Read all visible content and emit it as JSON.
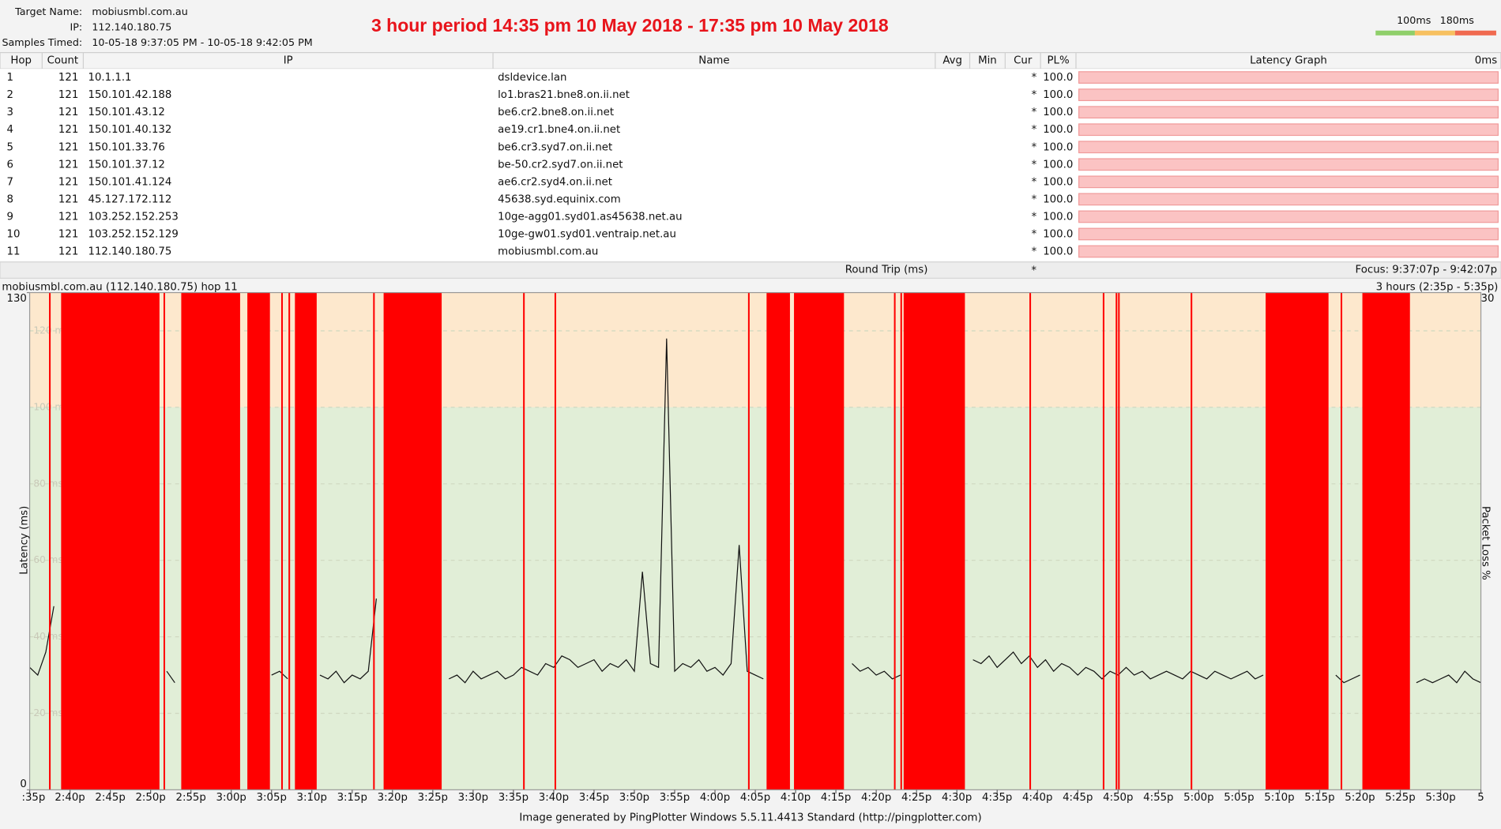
{
  "header": {
    "target_label": "Target Name:",
    "target": "mobiusmbl.com.au",
    "ip_label": "IP:",
    "ip": "112.140.180.75",
    "samples_label": "Samples Timed:",
    "samples": "10-05-18 9:37:05 PM - 10-05-18 9:42:05 PM",
    "title": "3 hour period 14:35 pm 10 May 2018 - 17:35 pm 10 May 2018"
  },
  "legend": {
    "ticks": [
      {
        "value": 100,
        "label": "100ms"
      },
      {
        "value": 180,
        "label": "180ms"
      }
    ]
  },
  "table": {
    "columns": [
      "Hop",
      "Count",
      "IP",
      "Name",
      "Avg",
      "Min",
      "Cur",
      "PL%",
      "Latency Graph",
      "0ms"
    ],
    "rows": [
      [
        1,
        121,
        "10.1.1.1",
        "dsldevice.lan",
        "*",
        "100.0"
      ],
      [
        2,
        121,
        "150.101.42.188",
        "lo1.bras21.bne8.on.ii.net",
        "*",
        "100.0"
      ],
      [
        3,
        121,
        "150.101.43.12",
        "be6.cr2.bne8.on.ii.net",
        "*",
        "100.0"
      ],
      [
        4,
        121,
        "150.101.40.132",
        "ae19.cr1.bne4.on.ii.net",
        "*",
        "100.0"
      ],
      [
        5,
        121,
        "150.101.33.76",
        "be6.cr3.syd7.on.ii.net",
        "*",
        "100.0"
      ],
      [
        6,
        121,
        "150.101.37.12",
        "be-50.cr2.syd7.on.ii.net",
        "*",
        "100.0"
      ],
      [
        7,
        121,
        "150.101.41.124",
        "ae6.cr2.syd4.on.ii.net",
        "*",
        "100.0"
      ],
      [
        8,
        121,
        "45.127.172.112",
        "45638.syd.equinix.com",
        "*",
        "100.0"
      ],
      [
        9,
        121,
        "103.252.152.253",
        "10ge-agg01.syd01.as45638.net.au",
        "*",
        "100.0"
      ],
      [
        10,
        121,
        "103.252.152.129",
        "10ge-gw01.syd01.ventraip.net.au",
        "*",
        "100.0"
      ],
      [
        11,
        121,
        "112.140.180.75",
        "mobiusmbl.com.au",
        "*",
        "100.0"
      ]
    ],
    "round_trip": "Round Trip (ms)",
    "round_trip_cur": "*",
    "focus": "Focus: 9:37:07p - 9:42:07p"
  },
  "chart_data": {
    "type": "line",
    "caption": "mobiusmbl.com.au (112.140.180.75) hop 11",
    "range": "3 hours (2:35p - 5:35p)",
    "y_label": "Latency (ms)",
    "y2_label": "Packet Loss %",
    "xlim": [
      875,
      1055
    ],
    "ylim": [
      0,
      130
    ],
    "y2lim": [
      0,
      30
    ],
    "y2ticks": [
      30
    ],
    "yticks": [
      0,
      {
        "value": 20,
        "label": "20 ms"
      },
      {
        "value": 40,
        "label": "40 ms"
      },
      {
        "value": 60,
        "label": "60 ms"
      },
      {
        "value": 80,
        "label": "80 ms"
      },
      {
        "value": 100,
        "label": "100 ms"
      },
      {
        "value": 120,
        "label": "120 ms"
      },
      130
    ],
    "xticks": [
      {
        "value": 875,
        "label": ":35p"
      },
      {
        "value": 880,
        "label": "2:40p"
      },
      {
        "value": 885,
        "label": "2:45p"
      },
      {
        "value": 890,
        "label": "2:50p"
      },
      {
        "value": 895,
        "label": "2:55p"
      },
      {
        "value": 900,
        "label": "3:00p"
      },
      {
        "value": 905,
        "label": "3:05p"
      },
      {
        "value": 910,
        "label": "3:10p"
      },
      {
        "value": 915,
        "label": "3:15p"
      },
      {
        "value": 920,
        "label": "3:20p"
      },
      {
        "value": 925,
        "label": "3:25p"
      },
      {
        "value": 930,
        "label": "3:30p"
      },
      {
        "value": 935,
        "label": "3:35p"
      },
      {
        "value": 940,
        "label": "3:40p"
      },
      {
        "value": 945,
        "label": "3:45p"
      },
      {
        "value": 950,
        "label": "3:50p"
      },
      {
        "value": 955,
        "label": "3:55p"
      },
      {
        "value": 960,
        "label": "4:00p"
      },
      {
        "value": 965,
        "label": "4:05p"
      },
      {
        "value": 970,
        "label": "4:10p"
      },
      {
        "value": 975,
        "label": "4:15p"
      },
      {
        "value": 980,
        "label": "4:20p"
      },
      {
        "value": 985,
        "label": "4:25p"
      },
      {
        "value": 990,
        "label": "4:30p"
      },
      {
        "value": 995,
        "label": "4:35p"
      },
      {
        "value": 1000,
        "label": "4:40p"
      },
      {
        "value": 1005,
        "label": "4:45p"
      },
      {
        "value": 1010,
        "label": "4:50p"
      },
      {
        "value": 1015,
        "label": "4:55p"
      },
      {
        "value": 1020,
        "label": "5:00p"
      },
      {
        "value": 1025,
        "label": "5:05p"
      },
      {
        "value": 1030,
        "label": "5:10p"
      },
      {
        "value": 1035,
        "label": "5:15p"
      },
      {
        "value": 1040,
        "label": "5:20p"
      },
      {
        "value": 1045,
        "label": "5:25p"
      },
      {
        "value": 1050,
        "label": "5:30p"
      },
      {
        "value": 1055,
        "label": "5"
      }
    ],
    "loss_color": "#ff0000",
    "line_color": "#111111",
    "loss_periods": [
      {
        "start": 877.4,
        "end": 877.6
      },
      {
        "start": 878.9,
        "end": 891.1
      },
      {
        "start": 891.6,
        "end": 891.8
      },
      {
        "start": 893.8,
        "end": 901.1
      },
      {
        "start": 902.0,
        "end": 904.8
      },
      {
        "start": 906.2,
        "end": 906.4
      },
      {
        "start": 907.1,
        "end": 907.3
      },
      {
        "start": 907.9,
        "end": 910.6
      },
      {
        "start": 917.6,
        "end": 917.8
      },
      {
        "start": 918.9,
        "end": 926.1
      },
      {
        "start": 936.2,
        "end": 936.4
      },
      {
        "start": 940.1,
        "end": 940.3
      },
      {
        "start": 964.1,
        "end": 964.3
      },
      {
        "start": 966.4,
        "end": 969.3
      },
      {
        "start": 969.8,
        "end": 976.0
      },
      {
        "start": 982.2,
        "end": 982.4
      },
      {
        "start": 983.0,
        "end": 983.2
      },
      {
        "start": 983.4,
        "end": 991.0
      },
      {
        "start": 999.0,
        "end": 999.2
      },
      {
        "start": 1008.1,
        "end": 1008.3
      },
      {
        "start": 1009.7,
        "end": 1009.9
      },
      {
        "start": 1010.0,
        "end": 1010.2
      },
      {
        "start": 1019.0,
        "end": 1019.2
      },
      {
        "start": 1028.3,
        "end": 1036.1
      },
      {
        "start": 1037.6,
        "end": 1037.8
      },
      {
        "start": 1040.3,
        "end": 1046.2
      }
    ],
    "x": [
      875,
      876,
      877,
      878,
      879,
      880,
      881,
      882,
      883,
      884,
      885,
      886,
      887,
      888,
      889,
      890,
      891,
      892,
      893,
      894,
      895,
      896,
      897,
      898,
      899,
      900,
      901,
      902,
      903,
      904,
      905,
      906,
      907,
      908,
      909,
      910,
      911,
      912,
      913,
      914,
      915,
      916,
      917,
      918,
      919,
      920,
      921,
      922,
      923,
      924,
      925,
      926,
      927,
      928,
      929,
      930,
      931,
      932,
      933,
      934,
      935,
      936,
      937,
      938,
      939,
      940,
      941,
      942,
      943,
      944,
      945,
      946,
      947,
      948,
      949,
      950,
      951,
      952,
      953,
      954,
      955,
      956,
      957,
      958,
      959,
      960,
      961,
      962,
      963,
      964,
      965,
      966,
      967,
      968,
      969,
      970,
      971,
      972,
      973,
      974,
      975,
      976,
      977,
      978,
      979,
      980,
      981,
      982,
      983,
      984,
      985,
      986,
      987,
      988,
      989,
      990,
      991,
      992,
      993,
      994,
      995,
      996,
      997,
      998,
      999,
      1000,
      1001,
      1002,
      1003,
      1004,
      1005,
      1006,
      1007,
      1008,
      1009,
      1010,
      1011,
      1012,
      1013,
      1014,
      1015,
      1016,
      1017,
      1018,
      1019,
      1020,
      1021,
      1022,
      1023,
      1024,
      1025,
      1026,
      1027,
      1028,
      1029,
      1030,
      1031,
      1032,
      1033,
      1034,
      1035,
      1036,
      1037,
      1038,
      1039,
      1040,
      1041,
      1042,
      1043,
      1044,
      1045,
      1046,
      1047,
      1048,
      1049,
      1050,
      1051,
      1052,
      1053,
      1054,
      1055
    ],
    "values": [
      32,
      30,
      36,
      48,
      null,
      null,
      null,
      null,
      null,
      null,
      null,
      null,
      null,
      null,
      null,
      null,
      null,
      31,
      28,
      null,
      null,
      null,
      null,
      null,
      null,
      null,
      null,
      null,
      null,
      null,
      30,
      31,
      29,
      null,
      null,
      null,
      30,
      29,
      31,
      28,
      30,
      29,
      31,
      50,
      null,
      null,
      null,
      null,
      null,
      null,
      null,
      null,
      29,
      30,
      28,
      31,
      29,
      30,
      31,
      29,
      30,
      32,
      31,
      30,
      33,
      32,
      35,
      34,
      32,
      33,
      34,
      31,
      33,
      32,
      34,
      31,
      57,
      33,
      32,
      118,
      31,
      33,
      32,
      34,
      31,
      32,
      30,
      33,
      64,
      31,
      30,
      29,
      null,
      null,
      null,
      null,
      null,
      null,
      null,
      null,
      null,
      null,
      33,
      31,
      32,
      30,
      31,
      29,
      30,
      null,
      null,
      null,
      null,
      null,
      null,
      null,
      null,
      34,
      33,
      35,
      32,
      34,
      36,
      33,
      35,
      32,
      34,
      31,
      33,
      32,
      30,
      32,
      31,
      29,
      31,
      30,
      32,
      30,
      31,
      29,
      30,
      31,
      30,
      29,
      31,
      30,
      29,
      31,
      30,
      29,
      30,
      31,
      29,
      30,
      null,
      null,
      null,
      null,
      null,
      null,
      null,
      null,
      30,
      28,
      29,
      30,
      null,
      null,
      null,
      null,
      null,
      null,
      28,
      29,
      28,
      29,
      30,
      28,
      31,
      29,
      28
    ]
  },
  "footer": "Image generated by PingPlotter Windows 5.5.11.4413 Standard (http://pingplotter.com)"
}
